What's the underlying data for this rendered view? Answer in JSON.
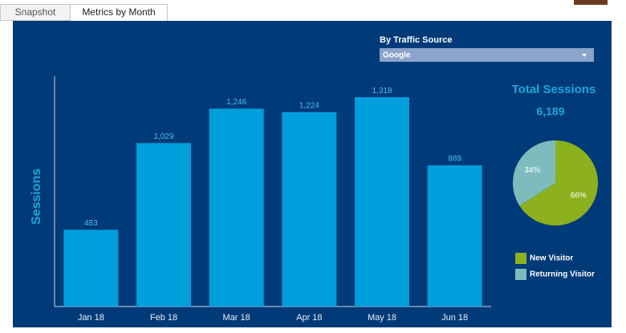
{
  "tabs": [
    "Snapshot",
    "Metrics by Month"
  ],
  "filter": {
    "label": "By Traffic Source",
    "selected": "Google"
  },
  "chart_data": [
    {
      "type": "bar",
      "y_label": "Sessions",
      "categories": [
        "Jan 18",
        "Feb 18",
        "Mar 18",
        "Apr 18",
        "May 18",
        "Jun 18"
      ],
      "values": [
        483,
        1029,
        1246,
        1224,
        1318,
        889
      ],
      "value_labels": [
        "483",
        "1,029",
        "1,246",
        "1,224",
        "1,318",
        "889"
      ],
      "color": "#009fdb",
      "ylim": [
        0,
        1450
      ]
    },
    {
      "type": "pie",
      "title": "Total Sessions",
      "total": {
        "value": 6189,
        "label": "6,189"
      },
      "series": [
        {
          "name": "New Visitor",
          "color": "#8cb01e",
          "values": [
            66
          ],
          "value_labels": [
            "66%"
          ]
        },
        {
          "name": "Returning Visitor",
          "color": "#7dbcbc",
          "values": [
            34
          ],
          "value_labels": [
            "34%"
          ]
        }
      ]
    }
  ]
}
